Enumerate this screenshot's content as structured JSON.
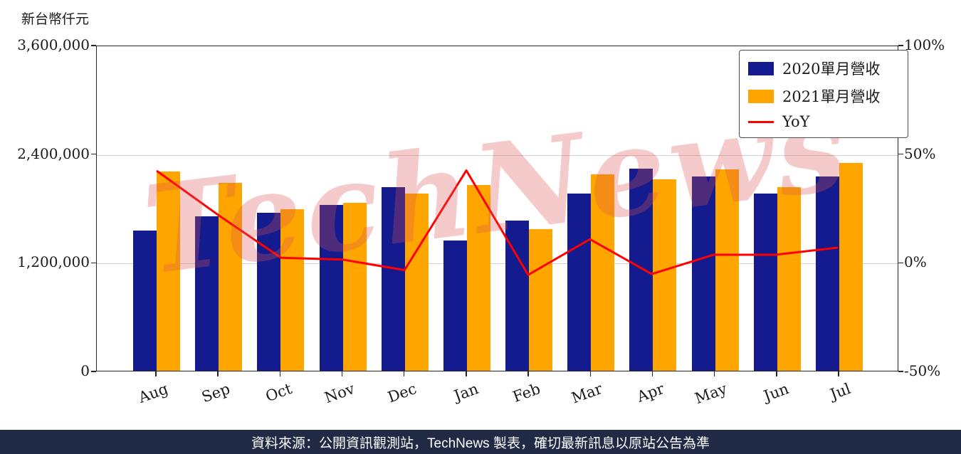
{
  "unit_label": "新台幣仟元",
  "watermark": "TechNews",
  "footer": {
    "text": "資料來源：公開資訊觀測站，TechNews 製表，確切最新訊息以原站公告為準"
  },
  "colors": {
    "bar_2020": "#141b8f",
    "bar_2021": "#ffa500",
    "yoy_line": "#ff0000",
    "watermark": "rgba(217,83,79,0.30)",
    "footer_bg": "#202a44",
    "grid": "#d2d2d2"
  },
  "chart_data": {
    "type": "bar",
    "title": "",
    "categories": [
      "Aug",
      "Sep",
      "Oct",
      "Nov",
      "Dec",
      "Jan",
      "Feb",
      "Mar",
      "Apr",
      "May",
      "Jun",
      "Jul"
    ],
    "series": [
      {
        "name": "2020單月營收",
        "type": "bar",
        "axis": "left",
        "color": "#141b8f",
        "values": [
          1548000,
          1705000,
          1745000,
          1830000,
          2028000,
          1438000,
          1658000,
          1957000,
          2232000,
          2146000,
          1957000,
          2146000
        ]
      },
      {
        "name": "2021單月營收",
        "type": "bar",
        "axis": "left",
        "color": "#ffa500",
        "values": [
          2201000,
          2075000,
          1784000,
          1855000,
          1957000,
          2051000,
          1564000,
          2169000,
          2114000,
          2224000,
          2028000,
          2295000
        ]
      },
      {
        "name": "YoY",
        "type": "line",
        "axis": "right",
        "color": "#ff0000",
        "values": [
          42.2,
          21.7,
          2.2,
          1.4,
          -3.5,
          42.6,
          -5.7,
          10.8,
          -5.3,
          3.6,
          3.6,
          6.9
        ]
      }
    ],
    "left_axis": {
      "title": "新台幣仟元",
      "tick_labels": [
        "0",
        "1,200,000",
        "2,400,000",
        "3,600,000"
      ],
      "tick_values": [
        0,
        1200000,
        2400000,
        3600000
      ],
      "min": 0,
      "max": 3600000
    },
    "right_axis": {
      "tick_labels": [
        "-50%",
        "0%",
        "50%",
        "100%"
      ],
      "tick_values": [
        -50,
        0,
        50,
        100
      ],
      "min": -50,
      "max": 100
    },
    "legend_position": "upper-right",
    "grid": true
  }
}
